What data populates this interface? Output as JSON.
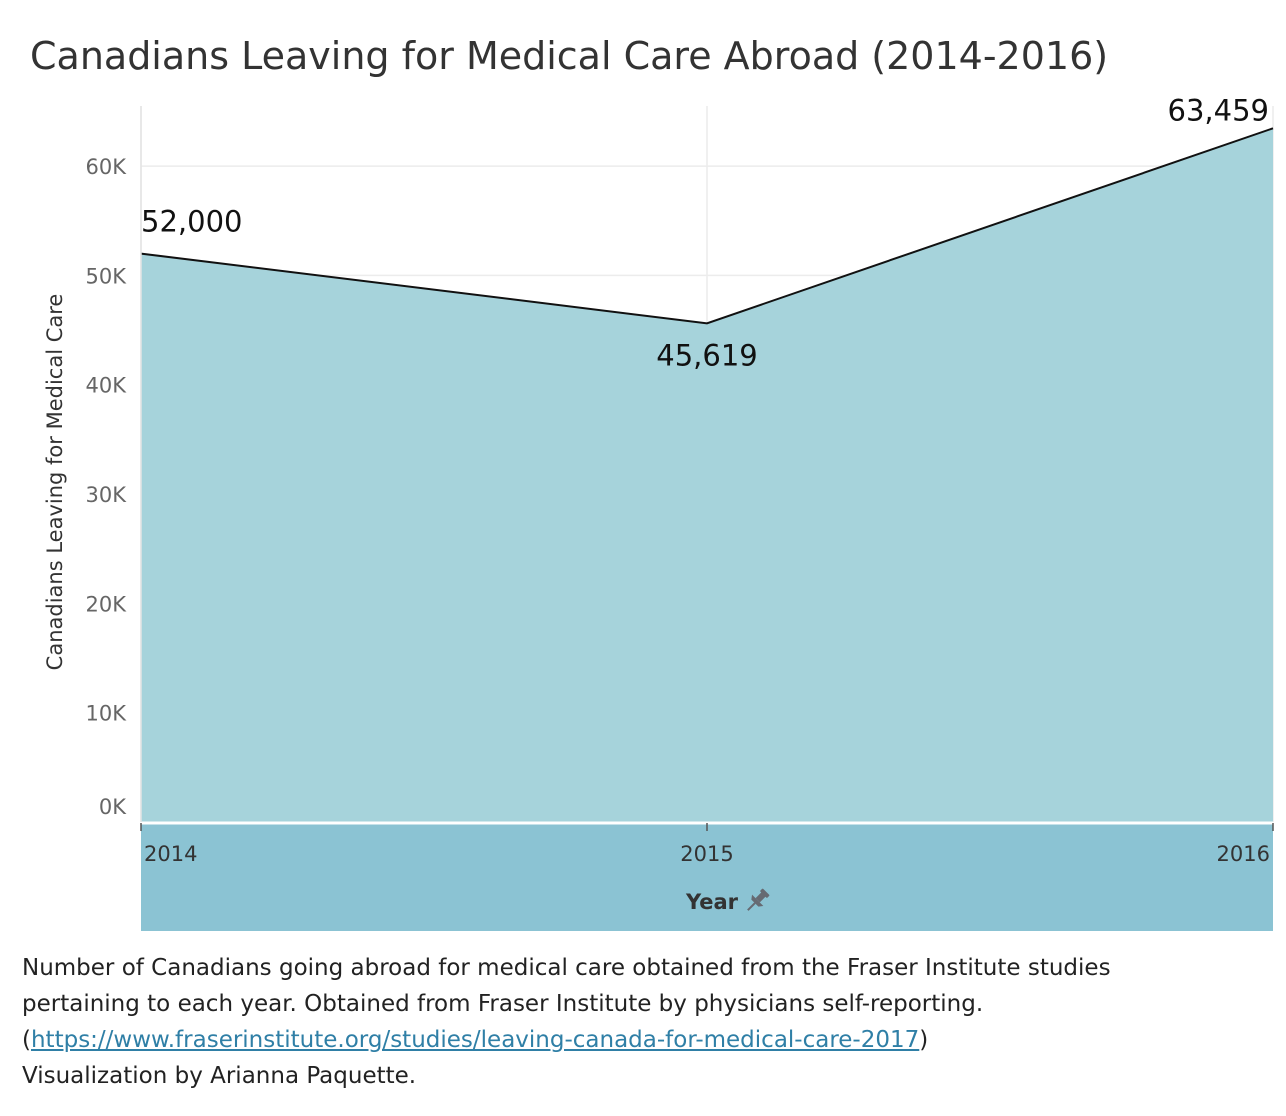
{
  "title": "Canadians Leaving for Medical Care Abroad (2014-2016)",
  "chart_data": {
    "type": "area",
    "x": [
      "2014",
      "2015",
      "2016"
    ],
    "values": [
      52000,
      45619,
      63459
    ],
    "data_labels": [
      "52,000",
      "45,619",
      "63,459"
    ],
    "ylabel": "Canadians Leaving for Medical Care",
    "xlabel": "Year",
    "ylim": [
      0,
      65500
    ],
    "y_ticks": [
      0,
      10000,
      20000,
      30000,
      40000,
      50000,
      60000
    ],
    "y_tick_labels": [
      "0K",
      "10K",
      "20K",
      "30K",
      "40K",
      "50K",
      "60K"
    ],
    "grid": true,
    "colors": {
      "area_fill": "#a6d3db",
      "line": "#111111",
      "x_axis_band": "#8bc3d3"
    }
  },
  "caption": {
    "line1": "Number of Canadians going abroad for medical care obtained from the Fraser Institute studies",
    "line2": "pertaining to each year. Obtained from Fraser Institute by physicians self-reporting.",
    "link_open": "(",
    "link_text": "https://www.fraserinstitute.org/studies/leaving-canada-for-medical-care-2017",
    "link_close": ")",
    "line4": "Visualization by Arianna Paquette."
  },
  "icons": {
    "axis_pin": "pin-icon"
  }
}
